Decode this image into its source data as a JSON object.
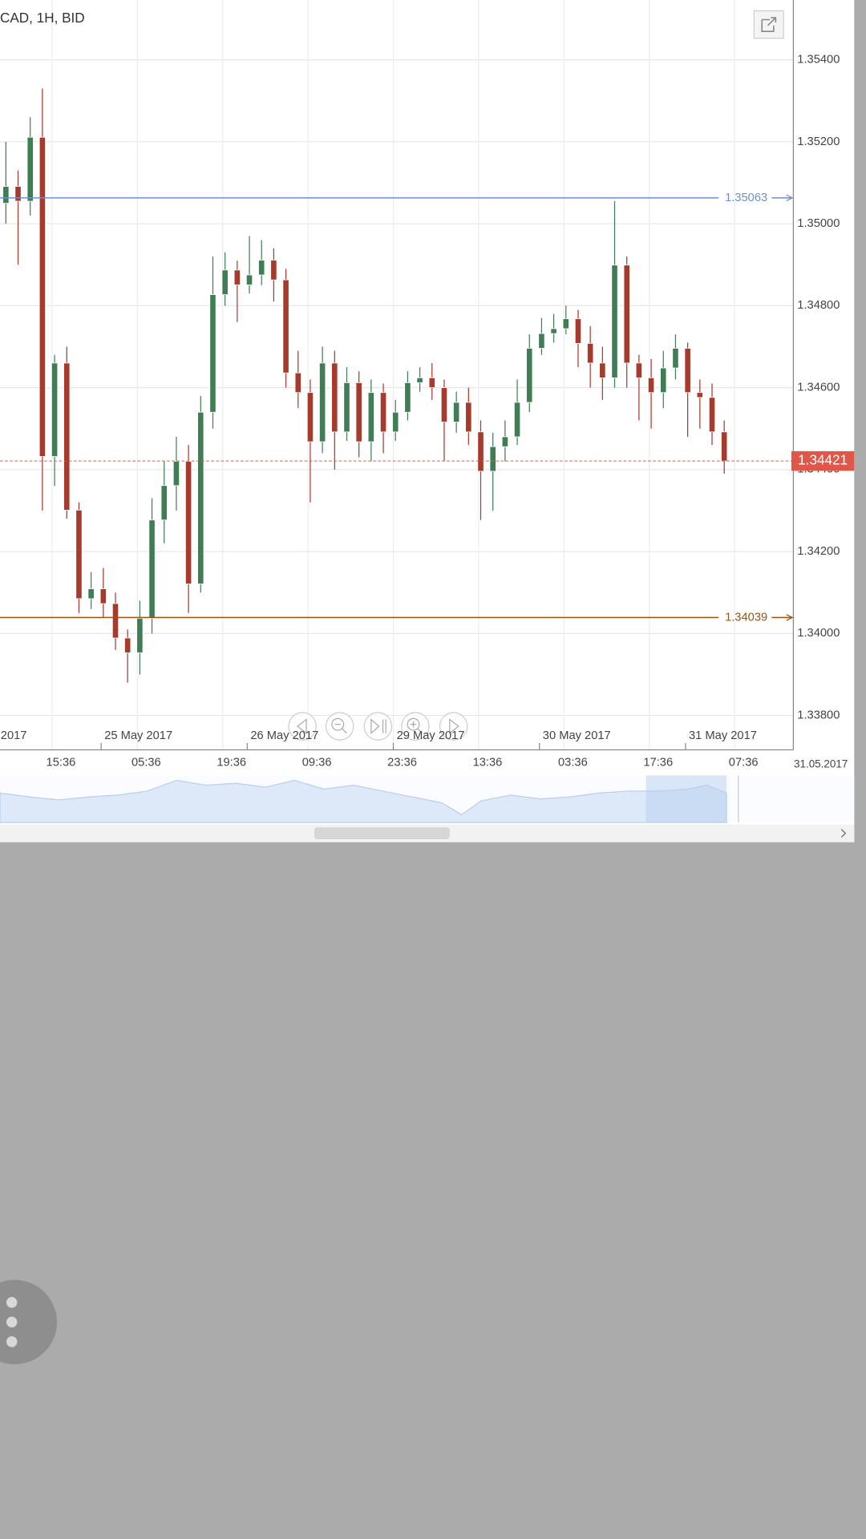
{
  "chart_data": {
    "type": "candlestick",
    "title": "CAD, 1H, BID",
    "up_color": "#3f7d55",
    "down_color": "#a63a2c",
    "ylim": [
      1.33716,
      1.35546
    ],
    "yticks": [
      {
        "value": 1.338,
        "label": "1.33800"
      },
      {
        "value": 1.34,
        "label": "1.34000"
      },
      {
        "value": 1.342,
        "label": "1.34200"
      },
      {
        "value": 1.344,
        "label": "1.34400"
      },
      {
        "value": 1.346,
        "label": "1.34600"
      },
      {
        "value": 1.348,
        "label": "1.34800"
      },
      {
        "value": 1.35,
        "label": "1.35000"
      },
      {
        "value": 1.352,
        "label": "1.35200"
      },
      {
        "value": 1.354,
        "label": "1.35400"
      }
    ],
    "grid": true,
    "time_labels": [
      "15:36",
      "05:36",
      "19:36",
      "09:36",
      "23:36",
      "13:36",
      "03:36",
      "17:36",
      "07:36"
    ],
    "date_labels": [
      "2017",
      "25 May 2017",
      "26 May 2017",
      "29 May 2017",
      "30 May 2017",
      "31 May 2017"
    ],
    "axis_date": "31.05.2017",
    "levels": [
      {
        "value": 1.35063,
        "color": "#6f8fc9"
      },
      {
        "value": 1.34039,
        "color": "#a0520f"
      }
    ],
    "current_price": {
      "value": 1.34421,
      "color": "#e0574a"
    },
    "open": [
      1.3505,
      1.35091,
      1.35055,
      1.35211,
      1.34432,
      1.3466,
      1.34301,
      1.34085,
      1.34109,
      1.34073,
      1.33989,
      1.33953,
      1.34037,
      1.34277,
      1.34361,
      1.3442,
      1.34121,
      1.3454,
      1.34827,
      1.34887,
      1.34851,
      1.34875,
      1.34911,
      1.34863,
      1.34636,
      1.34588,
      1.34468,
      1.3466,
      1.34492,
      1.34612,
      1.34468,
      1.34588,
      1.34492,
      1.3454,
      1.34612,
      1.34624,
      1.346,
      1.34516,
      1.34564,
      1.34492,
      1.34396,
      1.34456,
      1.3448,
      1.34564,
      1.34696,
      1.34732,
      1.34744,
      1.34768,
      1.34708,
      1.3466,
      1.34624,
      1.34899,
      1.3466,
      1.34624,
      1.34588,
      1.34648,
      1.34696,
      1.34588,
      1.34576,
      1.34492
    ],
    "high": [
      1.352,
      1.3513,
      1.3526,
      1.3533,
      1.3468,
      1.347,
      1.3432,
      1.3415,
      1.3416,
      1.341,
      1.3401,
      1.3408,
      1.3433,
      1.3442,
      1.3448,
      1.3446,
      1.3458,
      1.3492,
      1.3493,
      1.3491,
      1.3497,
      1.3496,
      1.3494,
      1.3489,
      1.3469,
      1.3462,
      1.347,
      1.3469,
      1.3465,
      1.3464,
      1.3462,
      1.3461,
      1.3457,
      1.3464,
      1.3465,
      1.3466,
      1.3462,
      1.3459,
      1.346,
      1.3452,
      1.3449,
      1.3452,
      1.3462,
      1.3473,
      1.3477,
      1.3478,
      1.348,
      1.3479,
      1.3475,
      1.347,
      1.35055,
      1.3492,
      1.3468,
      1.3467,
      1.3469,
      1.3473,
      1.3471,
      1.3462,
      1.3461,
      1.3452
    ],
    "low": [
      1.35,
      1.349,
      1.3502,
      1.343,
      1.3436,
      1.3428,
      1.3405,
      1.3406,
      1.3404,
      1.3396,
      1.3388,
      1.339,
      1.34,
      1.3422,
      1.343,
      1.3405,
      1.341,
      1.345,
      1.348,
      1.3476,
      1.3483,
      1.3485,
      1.3481,
      1.346,
      1.3455,
      1.3432,
      1.3444,
      1.344,
      1.3447,
      1.3443,
      1.3442,
      1.3444,
      1.3447,
      1.3452,
      1.3459,
      1.3457,
      1.3442,
      1.3449,
      1.3446,
      1.34277,
      1.343,
      1.3442,
      1.3446,
      1.3454,
      1.3468,
      1.3471,
      1.3473,
      1.3465,
      1.346,
      1.3457,
      1.346,
      1.346,
      1.3452,
      1.345,
      1.3455,
      1.3462,
      1.3448,
      1.345,
      1.3446,
      1.3439
    ],
    "close": [
      1.35091,
      1.35055,
      1.35211,
      1.34432,
      1.3466,
      1.34301,
      1.34085,
      1.34109,
      1.34073,
      1.33989,
      1.33953,
      1.34037,
      1.34277,
      1.34361,
      1.3442,
      1.34121,
      1.3454,
      1.34827,
      1.34887,
      1.34851,
      1.34875,
      1.34911,
      1.34863,
      1.34636,
      1.34588,
      1.34468,
      1.3466,
      1.34492,
      1.34612,
      1.34468,
      1.34588,
      1.34492,
      1.3454,
      1.34612,
      1.34624,
      1.346,
      1.34516,
      1.34564,
      1.34492,
      1.34396,
      1.34456,
      1.3448,
      1.34564,
      1.34696,
      1.34732,
      1.34744,
      1.34768,
      1.34708,
      1.3466,
      1.34624,
      1.34899,
      1.3466,
      1.34624,
      1.34588,
      1.34648,
      1.34696,
      1.34588,
      1.34576,
      1.34492,
      1.34421
    ]
  }
}
